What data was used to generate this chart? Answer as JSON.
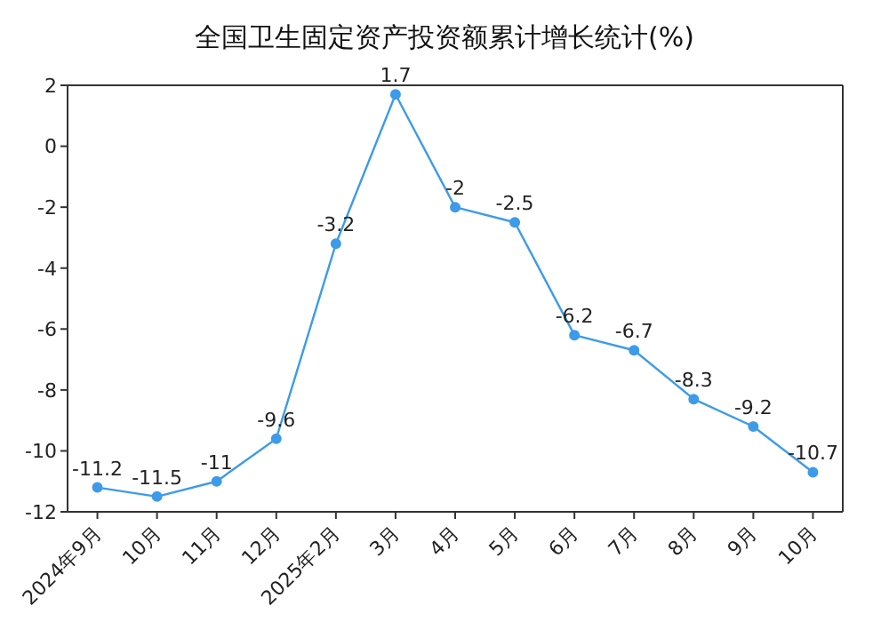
{
  "chart_data": {
    "type": "line",
    "title": "全国卫生固定资产投资额累计增长统计(%)",
    "categories": [
      "2024年9月",
      "10月",
      "11月",
      "12月",
      "2025年2月",
      "3月",
      "4月",
      "5月",
      "6月",
      "7月",
      "8月",
      "9月",
      "10月"
    ],
    "series": [
      {
        "color": "#3d9be9",
        "values": [
          -11.2,
          -11.5,
          -11,
          -9.6,
          -3.2,
          1.7,
          -2,
          -2.5,
          -6.2,
          -6.7,
          -8.3,
          -9.2,
          -10.7
        ]
      }
    ],
    "ylim": [
      -12,
      2
    ],
    "yticks": [
      -12,
      -10,
      -8,
      -6,
      -4,
      -2,
      0,
      2
    ],
    "grid": false,
    "legend": false,
    "marker": "circle",
    "line_style": "solid",
    "data_labels": true
  }
}
